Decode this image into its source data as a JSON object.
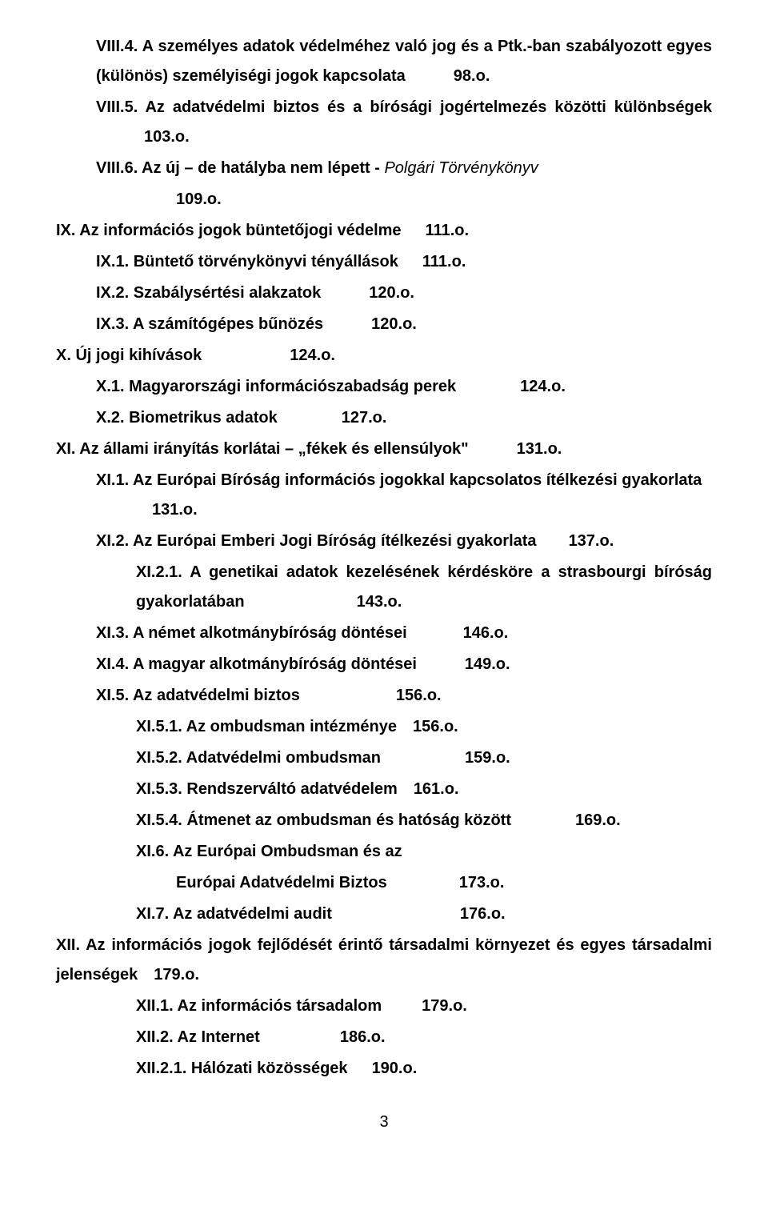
{
  "entries": [
    {
      "indent": 1,
      "justify": true,
      "segments": [
        {
          "text": "VIII.4. A személyes adatok védelméhez való jog és a Ptk.-ban szabályozott egyes (különös) személyiségi jogok kapcsolata",
          "bold": true
        },
        {
          "spacer": 60
        },
        {
          "text": "98.o.",
          "bold": true
        }
      ]
    },
    {
      "indent": 1,
      "justify": true,
      "segments": [
        {
          "text": "VIII.5. Az adatvédelmi biztos és a bírósági jogértelmezés közötti különbségek",
          "bold": true
        },
        {
          "spacer": 60
        },
        {
          "text": "103.o.",
          "bold": true
        }
      ]
    },
    {
      "indent": 1,
      "segments": [
        {
          "text": "VIII.6. Az új – de hatályba nem lépett - ",
          "bold": true
        },
        {
          "text": " Polgári Törvénykönyv",
          "italic": true
        }
      ]
    },
    {
      "indent": 3,
      "segments": [
        {
          "text": "109.o.",
          "bold": true
        }
      ]
    },
    {
      "indent": 0,
      "segments": [
        {
          "text": "IX. Az információs jogok büntetőjogi védelme",
          "bold": true
        },
        {
          "spacer": 30
        },
        {
          "text": "111.o.",
          "bold": true
        }
      ]
    },
    {
      "indent": 1,
      "segments": [
        {
          "text": "IX.1. Büntető törvénykönyvi tényállások",
          "bold": true
        },
        {
          "spacer": 30
        },
        {
          "text": "111.o.",
          "bold": true
        }
      ]
    },
    {
      "indent": 1,
      "segments": [
        {
          "text": "IX.2. Szabálysértési alakzatok",
          "bold": true
        },
        {
          "spacer": 60
        },
        {
          "text": "120.o.",
          "bold": true
        }
      ]
    },
    {
      "indent": 1,
      "segments": [
        {
          "text": "IX.3. A számítógépes bűnözés",
          "bold": true
        },
        {
          "spacer": 60
        },
        {
          "text": "120.o.",
          "bold": true
        }
      ]
    },
    {
      "indent": 0,
      "segments": [
        {
          "text": "X. Új jogi kihívások",
          "bold": true
        },
        {
          "spacer": 110
        },
        {
          "text": "124.o.",
          "bold": true
        }
      ]
    },
    {
      "indent": 1,
      "segments": [
        {
          "text": "X.1. Magyarországi információszabadság perek",
          "bold": true
        },
        {
          "spacer": 80
        },
        {
          "text": "124.o.",
          "bold": true
        }
      ]
    },
    {
      "indent": 1,
      "segments": [
        {
          "text": "X.2. Biometrikus adatok",
          "bold": true
        },
        {
          "spacer": 80
        },
        {
          "text": "127.o.",
          "bold": true
        }
      ]
    },
    {
      "indent": 0,
      "segments": [
        {
          "text": "XI. Az állami irányítás korlátai – „fékek és ellensúlyok\"",
          "bold": true
        },
        {
          "spacer": 60
        },
        {
          "text": "131.o.",
          "bold": true
        }
      ]
    },
    {
      "indent": 1,
      "segments": [
        {
          "text": "XI.1. Az Európai Bíróság információs jogokkal kapcsolatos ítélkezési gyakorlata",
          "bold": true
        },
        {
          "spacer": 70
        },
        {
          "text": "131.o.",
          "bold": true
        }
      ]
    },
    {
      "indent": 1,
      "segments": [
        {
          "text": "XI.2. Az Európai Emberi Jogi Bíróság ítélkezési gyakorlata",
          "bold": true
        },
        {
          "spacer": 40
        },
        {
          "text": "137.o.",
          "bold": true
        }
      ]
    },
    {
      "indent": 2,
      "justify": true,
      "segments": [
        {
          "text": "XI.2.1. A genetikai adatok kezelésének kérdésköre a strasbourgi bíróság gyakorlatában",
          "bold": true
        },
        {
          "spacer": 140
        },
        {
          "text": "143.o.",
          "bold": true
        }
      ]
    },
    {
      "indent": 1,
      "segments": [
        {
          "text": "XI.3.  A német alkotmánybíróság döntései",
          "bold": true
        },
        {
          "spacer": 70
        },
        {
          "text": "146.o.",
          "bold": true
        }
      ]
    },
    {
      "indent": 1,
      "segments": [
        {
          "text": "XI.4.  A magyar alkotmánybíróság döntései",
          "bold": true
        },
        {
          "spacer": 60
        },
        {
          "text": "149.o.",
          "bold": true
        }
      ]
    },
    {
      "indent": 1,
      "segments": [
        {
          "text": "XI.5. Az adatvédelmi biztos",
          "bold": true
        },
        {
          "spacer": 120
        },
        {
          "text": "156.o.",
          "bold": true
        }
      ]
    },
    {
      "indent": 2,
      "segments": [
        {
          "text": "XI.5.1. Az ombudsman intézménye",
          "bold": true
        },
        {
          "spacer": 20
        },
        {
          "text": "156.o.",
          "bold": true
        }
      ]
    },
    {
      "indent": 2,
      "segments": [
        {
          "text": "XI.5.2. Adatvédelmi ombudsman",
          "bold": true
        },
        {
          "spacer": 105
        },
        {
          "text": "159.o.",
          "bold": true
        }
      ]
    },
    {
      "indent": 2,
      "segments": [
        {
          "text": "XI.5.3.  Rendszerváltó adatvédelem",
          "bold": true
        },
        {
          "spacer": 20
        },
        {
          "text": "161.o.",
          "bold": true
        }
      ]
    },
    {
      "indent": 2,
      "segments": [
        {
          "text": "XI.5.4. Átmenet az ombudsman és hatóság között",
          "bold": true
        },
        {
          "spacer": 80
        },
        {
          "text": "169.o.",
          "bold": true
        }
      ]
    },
    {
      "indent": 2,
      "segments": [
        {
          "text": "XI.6. Az Európai Ombudsman és az",
          "bold": true
        }
      ]
    },
    {
      "indent": 3,
      "segments": [
        {
          "text": "Európai Adatvédelmi Biztos",
          "bold": true
        },
        {
          "spacer": 90
        },
        {
          "text": "173.o.",
          "bold": true
        }
      ]
    },
    {
      "indent": 2,
      "segments": [
        {
          "text": "XI.7. Az adatvédelmi audit",
          "bold": true
        },
        {
          "spacer": 160
        },
        {
          "text": "176.o.",
          "bold": true
        }
      ]
    },
    {
      "indent": 0,
      "justify": true,
      "segments": [
        {
          "text": "XII. Az információs jogok fejlődését érintő társadalmi környezet és egyes társadalmi jelenségek",
          "bold": true
        },
        {
          "spacer": 20
        },
        {
          "text": "179.o.",
          "bold": true
        }
      ]
    },
    {
      "indent": 2,
      "segments": [
        {
          "text": "XII.1. Az információs társadalom",
          "bold": true
        },
        {
          "spacer": 50
        },
        {
          "text": "179.o.",
          "bold": true
        }
      ]
    },
    {
      "indent": 2,
      "segments": [
        {
          "text": "XII.2. Az Internet",
          "bold": true
        },
        {
          "spacer": 100
        },
        {
          "text": "186.o.",
          "bold": true
        }
      ]
    },
    {
      "indent": 2,
      "segments": [
        {
          "text": "XII.2.1. Hálózati közösségek",
          "bold": true
        },
        {
          "spacer": 30
        },
        {
          "text": "190.o.",
          "bold": true
        }
      ]
    }
  ],
  "pageNumber": "3"
}
